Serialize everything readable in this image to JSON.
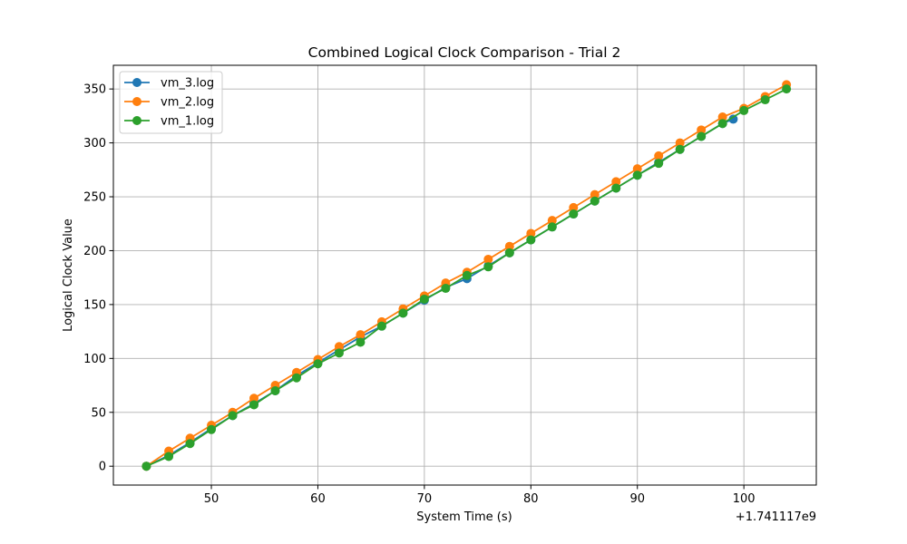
{
  "chart_data": {
    "type": "line",
    "title": "Combined Logical Clock Comparison - Trial 2",
    "xlabel": "System Time (s)",
    "ylabel": "Logical Clock Value",
    "x_offset_label": "+1.741117e9",
    "xlim": [
      40.8,
      106.8
    ],
    "ylim": [
      -17.5,
      372
    ],
    "xticks": [
      50,
      60,
      70,
      80,
      90,
      100
    ],
    "yticks": [
      0,
      50,
      100,
      150,
      200,
      250,
      300,
      350
    ],
    "grid": true,
    "legend_position": "upper-left",
    "marker": "circle",
    "series": [
      {
        "name": "vm_3.log",
        "color": "#1f77b4",
        "x": [
          43.9,
          46.0,
          48.0,
          50.0,
          52.0,
          54.0,
          56.0,
          58.0,
          60.0,
          62.0,
          64.0,
          66.0,
          68.0,
          70.0,
          72.0,
          74.0,
          76.0,
          78.0,
          80.0,
          82.0,
          84.0,
          86.0,
          88.0,
          90.0,
          92.0,
          94.0,
          96.0,
          98.0,
          99.0
        ],
        "y": [
          0,
          10,
          22,
          35,
          47,
          58,
          70,
          84,
          96,
          108,
          120,
          130,
          142,
          154,
          166,
          174,
          186,
          198,
          210,
          222,
          234,
          246,
          258,
          270,
          282,
          294,
          306,
          318,
          322
        ]
      },
      {
        "name": "vm_2.log",
        "color": "#ff7f0e",
        "x": [
          43.9,
          46.0,
          48.0,
          50.0,
          52.0,
          54.0,
          56.0,
          58.0,
          60.0,
          62.0,
          64.0,
          66.0,
          68.0,
          70.0,
          72.0,
          74.0,
          76.0,
          78.0,
          80.0,
          82.0,
          84.0,
          86.0,
          88.0,
          90.0,
          92.0,
          94.0,
          96.0,
          98.0,
          100.0,
          102.0,
          104.0
        ],
        "y": [
          0,
          14,
          26,
          38,
          50,
          63,
          75,
          87,
          99,
          111,
          122,
          134,
          146,
          158,
          170,
          180,
          192,
          204,
          216,
          228,
          240,
          252,
          264,
          276,
          288,
          300,
          312,
          324,
          332,
          343,
          354
        ]
      },
      {
        "name": "vm_1.log",
        "color": "#2ca02c",
        "x": [
          43.9,
          46.0,
          48.0,
          50.0,
          52.0,
          54.0,
          56.0,
          58.0,
          60.0,
          62.0,
          64.0,
          66.0,
          68.0,
          70.0,
          72.0,
          74.0,
          76.0,
          78.0,
          80.0,
          82.0,
          84.0,
          86.0,
          88.0,
          90.0,
          92.0,
          94.0,
          96.0,
          98.0,
          100.0,
          102.0,
          104.0
        ],
        "y": [
          0,
          9,
          21,
          34,
          47,
          57,
          70,
          82,
          95,
          105,
          115,
          130,
          142,
          155,
          165,
          177,
          185,
          198,
          210,
          222,
          234,
          246,
          258,
          270,
          281,
          294,
          306,
          318,
          330,
          340,
          350
        ]
      }
    ]
  }
}
